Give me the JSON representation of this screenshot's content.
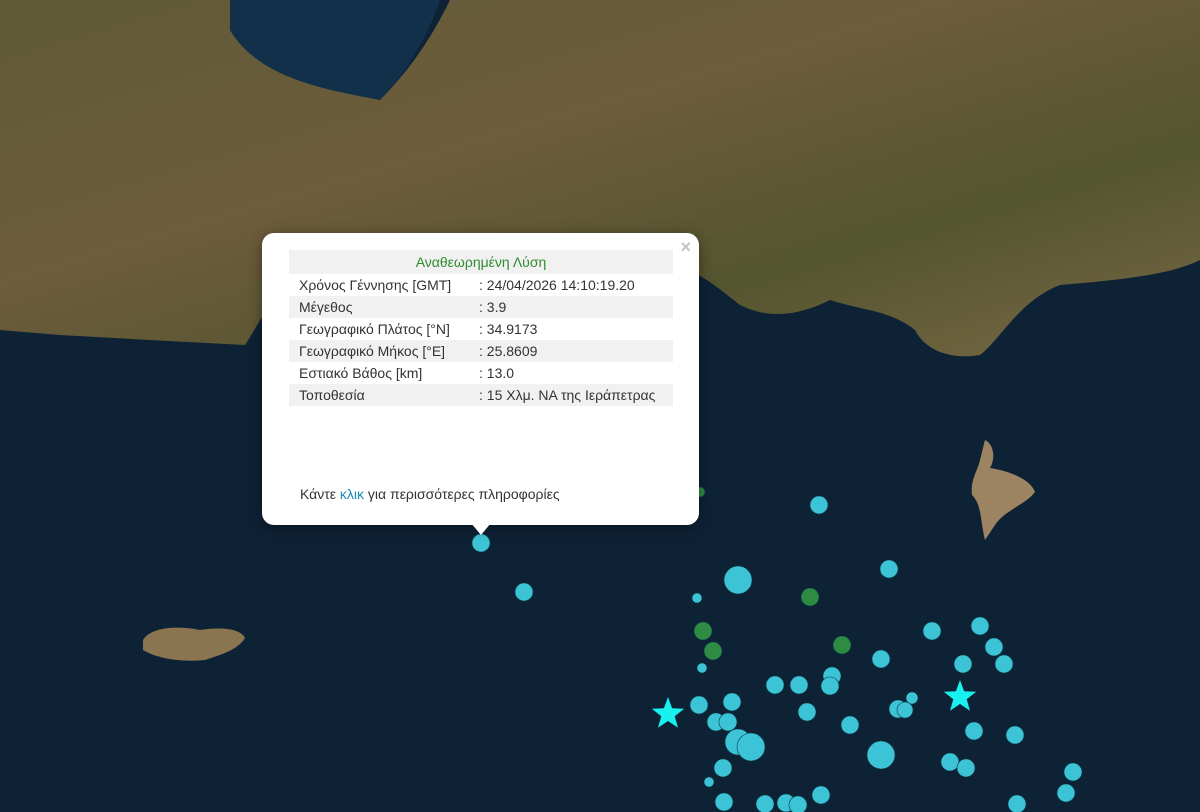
{
  "popup": {
    "title": "Αναθεωρημένη Λύση",
    "close_label": "×",
    "rows": [
      {
        "label": "Χρόνος Γέννησης [GMT]",
        "value": ": 24/04/2026 14:10:19.20"
      },
      {
        "label": "Μέγεθος",
        "value": ": 3.9"
      },
      {
        "label": "Γεωγραφικό Πλάτος [°N]",
        "value": ": 34.9173"
      },
      {
        "label": "Γεωγραφικό Μήκος [°E]",
        "value": ": 25.8609"
      },
      {
        "label": "Εστιακό Βάθος [km]",
        "value": ": 13.0"
      },
      {
        "label": "Τοποθεσία",
        "value": ": 15 Χλμ. ΝΑ της Ιεράπετρας"
      }
    ],
    "more_prefix": "Κάντε ",
    "more_link": "κλικ",
    "more_suffix": " για περισσότερες πληροφορίες"
  },
  "colors": {
    "sea": "#0e2236",
    "land": "#6b5a3a",
    "event_marker": "#3cc4d6",
    "older_event_marker": "#2e8b44",
    "star_marker": "#19f0f0",
    "title_green": "#2e8b2e",
    "link": "#1a8bb8"
  },
  "icons": {
    "close": "close-icon",
    "star": "star-icon",
    "event": "circle-marker-icon"
  }
}
